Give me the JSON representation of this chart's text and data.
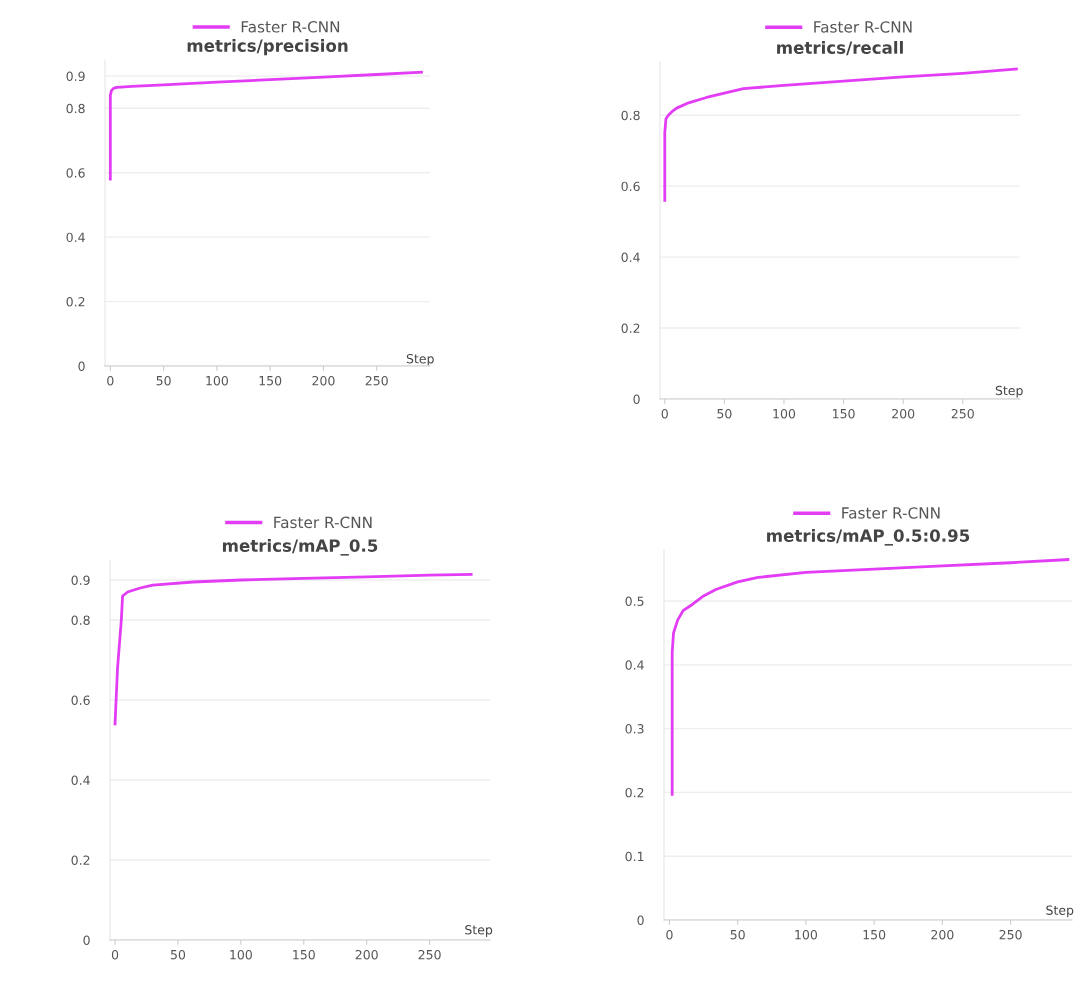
{
  "chart_data": [
    {
      "type": "line",
      "title": "metrics/precision",
      "xlabel": "Step",
      "legend": "top",
      "grid": "y",
      "xlim": [
        -5,
        300
      ],
      "xticks": [
        0,
        50,
        100,
        150,
        200,
        250
      ],
      "ylim": [
        0,
        0.95
      ],
      "yticks": [
        0,
        0.2,
        0.4,
        0.6,
        0.8,
        0.9
      ],
      "series": [
        {
          "name": "Faster R-CNN",
          "color": "#e23cf5",
          "x": [
            0,
            0,
            1,
            3,
            6,
            10,
            20,
            50,
            100,
            150,
            200,
            250,
            292
          ],
          "values": [
            0.58,
            0.84,
            0.855,
            0.862,
            0.865,
            0.866,
            0.868,
            0.873,
            0.881,
            0.889,
            0.897,
            0.905,
            0.912
          ]
        }
      ]
    },
    {
      "type": "line",
      "title": "metrics/recall",
      "xlabel": "Step",
      "legend": "top",
      "grid": "y",
      "xlim": [
        -4,
        298
      ],
      "xticks": [
        0,
        50,
        100,
        150,
        200,
        250
      ],
      "ylim": [
        0,
        0.95
      ],
      "yticks": [
        0,
        0.2,
        0.4,
        0.6,
        0.8
      ],
      "series": [
        {
          "name": "Faster R-CNN",
          "color": "#e23cf5",
          "x": [
            0,
            0,
            1,
            3,
            6,
            10,
            20,
            35,
            50,
            66,
            100,
            150,
            200,
            250,
            295
          ],
          "values": [
            0.56,
            0.75,
            0.79,
            0.8,
            0.81,
            0.82,
            0.835,
            0.85,
            0.862,
            0.875,
            0.884,
            0.896,
            0.908,
            0.918,
            0.93
          ]
        }
      ]
    },
    {
      "type": "line",
      "title": "metrics/mAP_0.5",
      "xlabel": "Step",
      "legend": "top",
      "grid": "y",
      "xlim": [
        -4,
        298
      ],
      "xticks": [
        0,
        50,
        100,
        150,
        200,
        250
      ],
      "ylim": [
        0,
        0.95
      ],
      "yticks": [
        0,
        0.2,
        0.4,
        0.6,
        0.8,
        0.9
      ],
      "series": [
        {
          "name": "Faster R-CNN",
          "color": "#e23cf5",
          "x": [
            0,
            2,
            5,
            6,
            10,
            15,
            20,
            30,
            62,
            100,
            150,
            200,
            250,
            283
          ],
          "values": [
            0.54,
            0.68,
            0.8,
            0.86,
            0.87,
            0.875,
            0.88,
            0.887,
            0.895,
            0.9,
            0.904,
            0.908,
            0.912,
            0.914
          ]
        }
      ]
    },
    {
      "type": "line",
      "title": "metrics/mAP_0.5:0.95",
      "xlabel": "Step",
      "legend": "top",
      "grid": "y",
      "xlim": [
        -4,
        295
      ],
      "xticks": [
        0,
        50,
        100,
        150,
        200,
        250
      ],
      "ylim": [
        0,
        0.58
      ],
      "yticks": [
        0,
        0.1,
        0.2,
        0.3,
        0.4,
        0.5
      ],
      "series": [
        {
          "name": "Faster R-CNN",
          "color": "#e23cf5",
          "x": [
            2,
            2,
            3,
            6,
            10,
            17,
            25,
            34,
            50,
            65,
            100,
            150,
            200,
            250,
            292
          ],
          "values": [
            0.197,
            0.42,
            0.45,
            0.47,
            0.485,
            0.495,
            0.508,
            0.518,
            0.53,
            0.537,
            0.545,
            0.55,
            0.555,
            0.56,
            0.565
          ]
        }
      ]
    }
  ]
}
